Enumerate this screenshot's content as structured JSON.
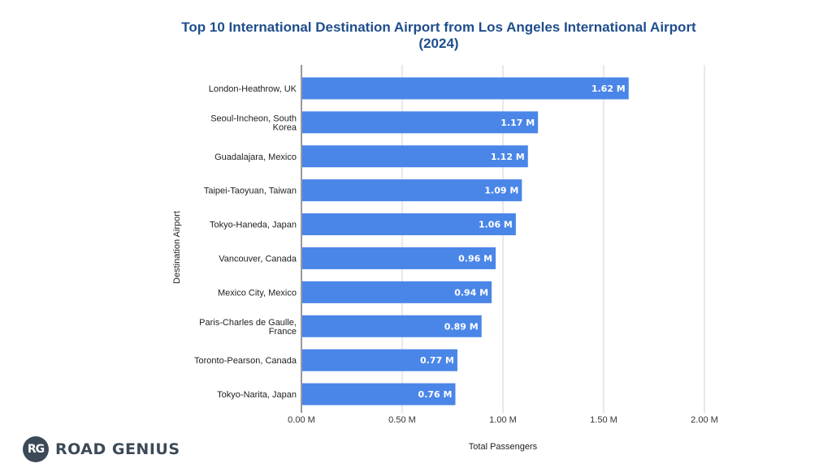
{
  "chart_data": {
    "type": "bar",
    "orientation": "horizontal",
    "title": "Top 10 International Destination Airport from Los Angeles International Airport (2024)",
    "xlabel": "Total Passengers",
    "ylabel": "Destination Airport",
    "categories": [
      [
        "London-Heathrow, UK"
      ],
      [
        "Seoul-Incheon, South",
        "Korea"
      ],
      [
        "Guadalajara, Mexico"
      ],
      [
        "Taipei-Taoyuan, Taiwan"
      ],
      [
        "Tokyo-Haneda, Japan"
      ],
      [
        "Vancouver, Canada"
      ],
      [
        "Mexico City, Mexico"
      ],
      [
        "Paris-Charles de Gaulle,",
        "France"
      ],
      [
        "Toronto-Pearson, Canada"
      ],
      [
        "Tokyo-Narita, Japan"
      ]
    ],
    "values": [
      1.62,
      1.17,
      1.12,
      1.09,
      1.06,
      0.96,
      0.94,
      0.89,
      0.77,
      0.76
    ],
    "data_labels": [
      "1.62 M",
      "1.17 M",
      "1.12 M",
      "1.09 M",
      "1.06 M",
      "0.96 M",
      "0.94 M",
      "0.89 M",
      "0.77 M",
      "0.76 M"
    ],
    "x_ticks": [
      0,
      0.5,
      1.0,
      1.5,
      2.0
    ],
    "x_tick_labels": [
      "0.00 M",
      "0.50 M",
      "1.00 M",
      "1.50 M",
      "2.00 M"
    ],
    "xlim": [
      0,
      2.0
    ],
    "grid": true,
    "bar_color": "#4a86e8"
  },
  "logo": {
    "badge": "RG",
    "text": "ROAD GENIUS"
  }
}
